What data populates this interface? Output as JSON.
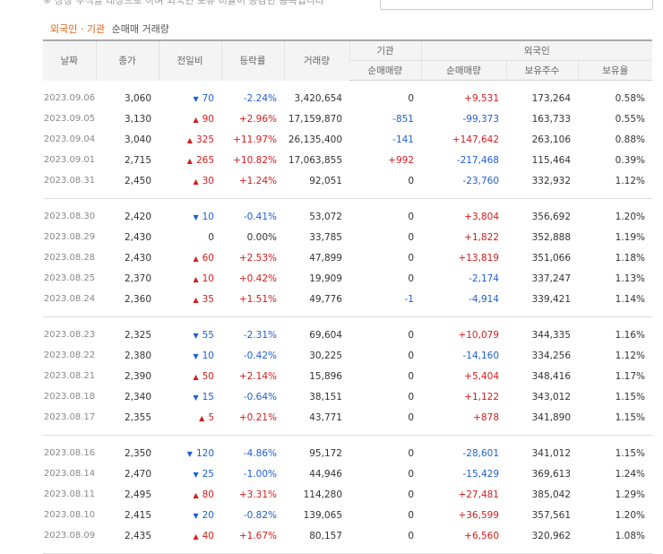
{
  "top_note": "※ 상장 주식을 대상으로 하며 외국인 보유 비율이 증감한 종목입니다",
  "title": {
    "part1": "외국인",
    "sep": "·",
    "part2": "기관",
    "part3": "순매매 거래량"
  },
  "headers": {
    "date": "날짜",
    "close": "종가",
    "change": "전일비",
    "rate": "등락률",
    "volume": "거래량",
    "inst": "기관",
    "foreign": "외국인",
    "inst_net": "순매매량",
    "foreign_net": "순매매량",
    "holdings": "보유주수",
    "ratio": "보유율"
  },
  "groups": [
    [
      {
        "date": "2023.09.06",
        "close": "3,060",
        "dir": "down",
        "change": "70",
        "rate": "-2.24%",
        "volume": "3,420,654",
        "inst": "0",
        "foreign": "+9,531",
        "holdings": "173,264",
        "ratio": "0.58%"
      },
      {
        "date": "2023.09.05",
        "close": "3,130",
        "dir": "up",
        "change": "90",
        "rate": "+2.96%",
        "volume": "17,159,870",
        "inst": "-851",
        "foreign": "-99,373",
        "holdings": "163,733",
        "ratio": "0.55%"
      },
      {
        "date": "2023.09.04",
        "close": "3,040",
        "dir": "up",
        "change": "325",
        "rate": "+11.97%",
        "volume": "26,135,400",
        "inst": "-141",
        "foreign": "+147,642",
        "holdings": "263,106",
        "ratio": "0.88%"
      },
      {
        "date": "2023.09.01",
        "close": "2,715",
        "dir": "up",
        "change": "265",
        "rate": "+10.82%",
        "volume": "17,063,855",
        "inst": "+992",
        "foreign": "-217,468",
        "holdings": "115,464",
        "ratio": "0.39%"
      },
      {
        "date": "2023.08.31",
        "close": "2,450",
        "dir": "up",
        "change": "30",
        "rate": "+1.24%",
        "volume": "92,051",
        "inst": "0",
        "foreign": "-23,760",
        "holdings": "332,932",
        "ratio": "1.12%"
      }
    ],
    [
      {
        "date": "2023.08.30",
        "close": "2,420",
        "dir": "down",
        "change": "10",
        "rate": "-0.41%",
        "volume": "53,072",
        "inst": "0",
        "foreign": "+3,804",
        "holdings": "356,692",
        "ratio": "1.20%"
      },
      {
        "date": "2023.08.29",
        "close": "2,430",
        "dir": "none",
        "change": "0",
        "rate": "0.00%",
        "volume": "33,785",
        "inst": "0",
        "foreign": "+1,822",
        "holdings": "352,888",
        "ratio": "1.19%"
      },
      {
        "date": "2023.08.28",
        "close": "2,430",
        "dir": "up",
        "change": "60",
        "rate": "+2.53%",
        "volume": "47,899",
        "inst": "0",
        "foreign": "+13,819",
        "holdings": "351,066",
        "ratio": "1.18%"
      },
      {
        "date": "2023.08.25",
        "close": "2,370",
        "dir": "up",
        "change": "10",
        "rate": "+0.42%",
        "volume": "19,909",
        "inst": "0",
        "foreign": "-2,174",
        "holdings": "337,247",
        "ratio": "1.13%"
      },
      {
        "date": "2023.08.24",
        "close": "2,360",
        "dir": "up",
        "change": "35",
        "rate": "+1.51%",
        "volume": "49,776",
        "inst": "-1",
        "foreign": "-4,914",
        "holdings": "339,421",
        "ratio": "1.14%"
      }
    ],
    [
      {
        "date": "2023.08.23",
        "close": "2,325",
        "dir": "down",
        "change": "55",
        "rate": "-2.31%",
        "volume": "69,604",
        "inst": "0",
        "foreign": "+10,079",
        "holdings": "344,335",
        "ratio": "1.16%"
      },
      {
        "date": "2023.08.22",
        "close": "2,380",
        "dir": "down",
        "change": "10",
        "rate": "-0.42%",
        "volume": "30,225",
        "inst": "0",
        "foreign": "-14,160",
        "holdings": "334,256",
        "ratio": "1.12%"
      },
      {
        "date": "2023.08.21",
        "close": "2,390",
        "dir": "up",
        "change": "50",
        "rate": "+2.14%",
        "volume": "15,896",
        "inst": "0",
        "foreign": "+5,404",
        "holdings": "348,416",
        "ratio": "1.17%"
      },
      {
        "date": "2023.08.18",
        "close": "2,340",
        "dir": "down",
        "change": "15",
        "rate": "-0.64%",
        "volume": "38,151",
        "inst": "0",
        "foreign": "+1,122",
        "holdings": "343,012",
        "ratio": "1.15%"
      },
      {
        "date": "2023.08.17",
        "close": "2,355",
        "dir": "up",
        "change": "5",
        "rate": "+0.21%",
        "volume": "43,771",
        "inst": "0",
        "foreign": "+878",
        "holdings": "341,890",
        "ratio": "1.15%"
      }
    ],
    [
      {
        "date": "2023.08.16",
        "close": "2,350",
        "dir": "down",
        "change": "120",
        "rate": "-4.86%",
        "volume": "95,172",
        "inst": "0",
        "foreign": "-28,601",
        "holdings": "341,012",
        "ratio": "1.15%"
      },
      {
        "date": "2023.08.14",
        "close": "2,470",
        "dir": "down",
        "change": "25",
        "rate": "-1.00%",
        "volume": "44,946",
        "inst": "0",
        "foreign": "-15,429",
        "holdings": "369,613",
        "ratio": "1.24%"
      },
      {
        "date": "2023.08.11",
        "close": "2,495",
        "dir": "up",
        "change": "80",
        "rate": "+3.31%",
        "volume": "114,280",
        "inst": "0",
        "foreign": "+27,481",
        "holdings": "385,042",
        "ratio": "1.29%"
      },
      {
        "date": "2023.08.10",
        "close": "2,415",
        "dir": "down",
        "change": "20",
        "rate": "-0.82%",
        "volume": "139,065",
        "inst": "0",
        "foreign": "+36,599",
        "holdings": "357,561",
        "ratio": "1.20%"
      },
      {
        "date": "2023.08.09",
        "close": "2,435",
        "dir": "up",
        "change": "40",
        "rate": "+1.67%",
        "volume": "80,157",
        "inst": "0",
        "foreign": "+6,560",
        "holdings": "320,962",
        "ratio": "1.08%"
      }
    ]
  ],
  "colors": {
    "up": "#d41c1c",
    "down": "#1c5fd4",
    "accent": "#e06010"
  }
}
